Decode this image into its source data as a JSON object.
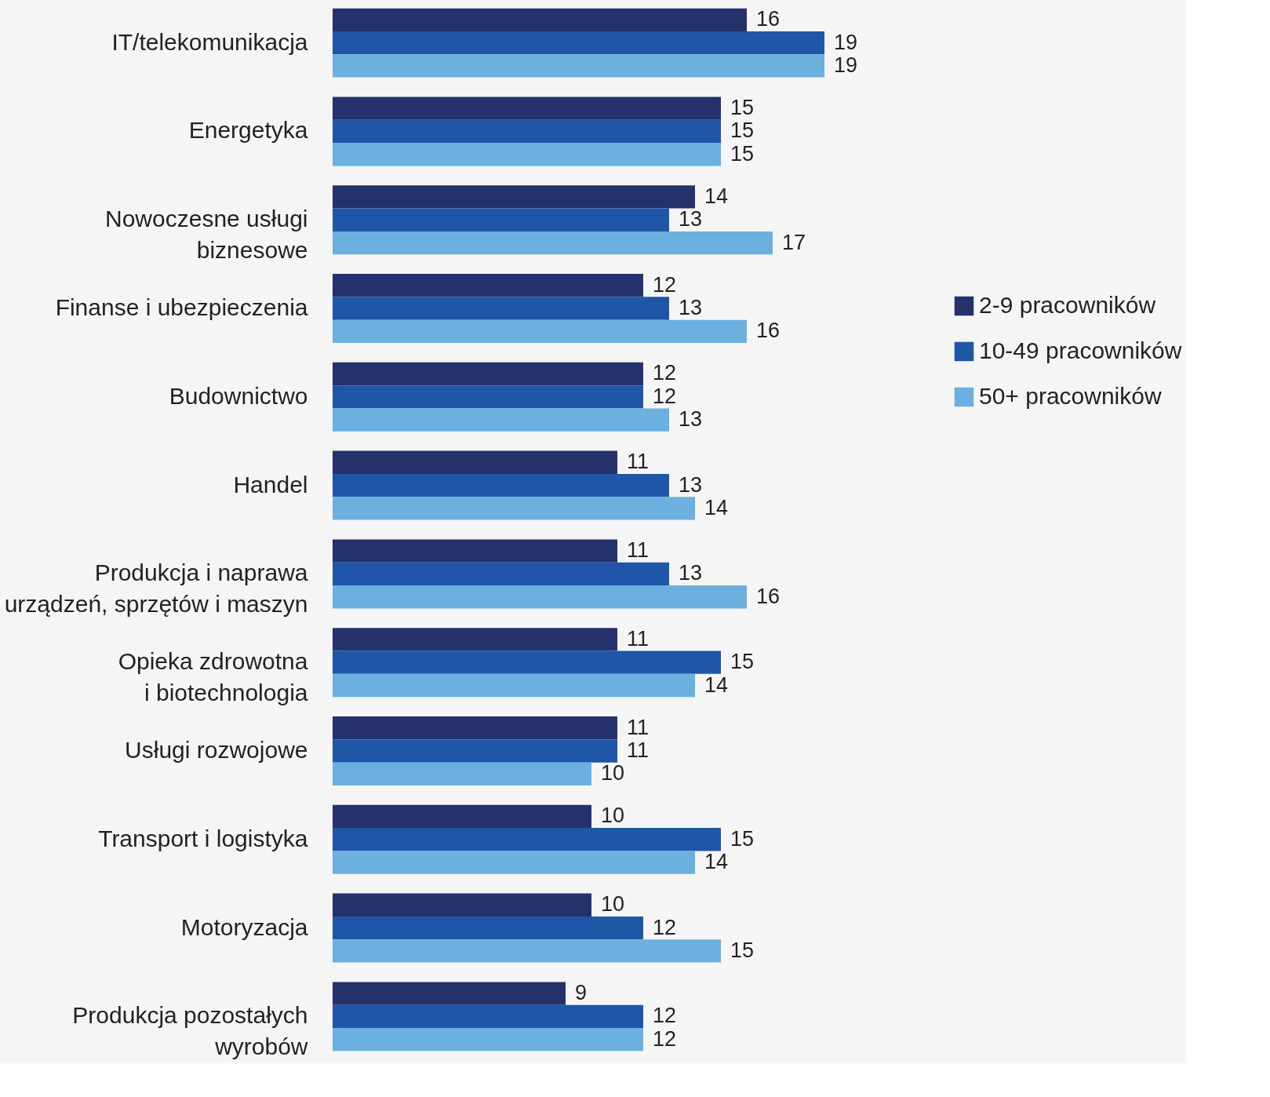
{
  "chart_data": {
    "type": "bar",
    "orientation": "horizontal",
    "data_labels": true,
    "legend": "right",
    "categories": [
      "IT/telekomunikacja",
      "Energetyka",
      "Nowoczesne usługi\nbiznesowe",
      "Finanse i ubezpieczenia",
      "Budownictwo",
      "Handel",
      "Produkcja i naprawa\nurządzeń, sprzętów i maszyn",
      "Opieka zdrowotna\ni biotechnologia",
      "Usługi rozwojowe",
      "Transport i logistyka",
      "Motoryzacja",
      "Produkcja pozostałych\nwyrobów"
    ],
    "series": [
      {
        "name": "2-9 pracowników",
        "color": "#25316b",
        "values": [
          16,
          15,
          14,
          12,
          12,
          11,
          11,
          11,
          11,
          10,
          10,
          9
        ]
      },
      {
        "name": "10-49 pracowników",
        "color": "#1f56a8",
        "values": [
          19,
          15,
          13,
          13,
          12,
          13,
          13,
          15,
          11,
          15,
          12,
          12
        ]
      },
      {
        "name": "50+ pracowników",
        "color": "#6cb0e0",
        "values": [
          19,
          15,
          17,
          16,
          13,
          14,
          16,
          14,
          10,
          14,
          15,
          12
        ]
      }
    ]
  }
}
